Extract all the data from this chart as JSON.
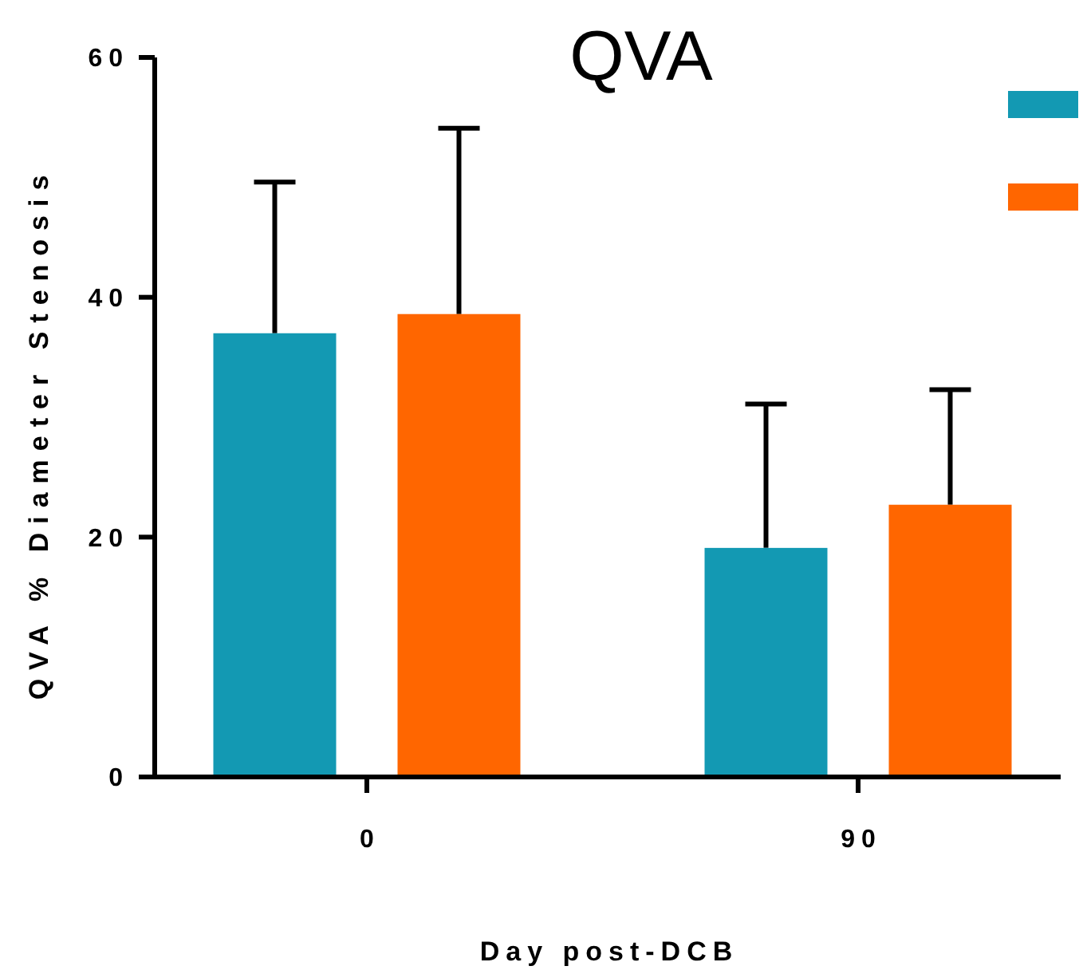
{
  "chart_data": {
    "type": "bar",
    "title": "QVA",
    "xlabel": "Day post-DCB",
    "ylabel": "QVA % Diameter Stenosis",
    "categories": [
      "0",
      "90"
    ],
    "series": [
      {
        "color": "#1399b3",
        "values": [
          37,
          19.1
        ],
        "errors": [
          [
            37,
            49.6
          ],
          [
            19.1,
            31.1
          ]
        ]
      },
      {
        "color": "#ff6600",
        "values": [
          38.6,
          22.7
        ],
        "errors": [
          [
            38.6,
            54.1
          ],
          [
            22.7,
            32.3
          ]
        ]
      }
    ],
    "ylim": [
      0,
      60
    ],
    "yticks": [
      0,
      20,
      40,
      60
    ],
    "grid": false
  }
}
